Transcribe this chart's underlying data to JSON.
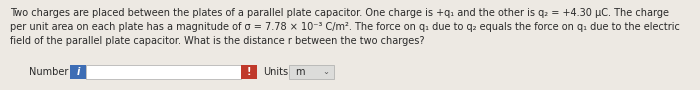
{
  "bg_color": "#ede9e3",
  "text_lines": [
    "Two charges are placed between the plates of a parallel plate capacitor. One charge is +q₁ and the other is q₂ = +4.30 μC. The charge",
    "per unit area on each plate has a magnitude of σ = 7.78 × 10⁻³ C/m². The force on q₁ due to q₂ equals the force on q₁ due to the electric",
    "field of the parallel plate capacitor. What is the distance r between the two charges?"
  ],
  "label_number": "Number",
  "label_units": "Units",
  "units_text": "m",
  "blue_icon_color": "#3d6db5",
  "red_icon_color": "#c0392b",
  "input_box_color": "#ffffff",
  "units_box_color": "#dcdcda",
  "text_color": "#2a2a2a",
  "font_size": 7.0
}
